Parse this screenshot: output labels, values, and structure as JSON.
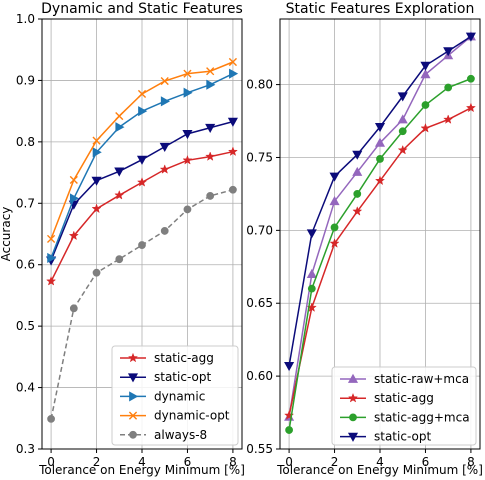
{
  "chart_data": [
    {
      "type": "line",
      "title": "Dynamic and Static Features",
      "xlabel": "Tolerance on Energy Minimum [%]",
      "ylabel": "Accuracy",
      "xlim": [
        -0.4,
        8.4
      ],
      "ylim": [
        0.3,
        1.0
      ],
      "xticks": [
        0,
        2,
        4,
        6,
        8
      ],
      "yticks": [
        0.3,
        0.4,
        0.5,
        0.6,
        0.7,
        0.8,
        0.9,
        1.0
      ],
      "ytick_labels": [
        "0.3",
        "0.4",
        "0.5",
        "0.6",
        "0.7",
        "0.8",
        "0.9",
        "1.0"
      ],
      "grid": true,
      "legend_position": "lower-right",
      "x": [
        0,
        1,
        2,
        3,
        4,
        5,
        6,
        7,
        8
      ],
      "series": [
        {
          "name": "static-agg",
          "color": "#d62728",
          "marker": "star",
          "dash": "",
          "values": [
            0.573,
            0.647,
            0.691,
            0.713,
            0.734,
            0.755,
            0.77,
            0.776,
            0.784
          ]
        },
        {
          "name": "static-opt",
          "color": "#0b0b7a",
          "marker": "tri-down",
          "dash": "",
          "values": [
            0.607,
            0.698,
            0.737,
            0.752,
            0.771,
            0.792,
            0.813,
            0.823,
            0.833
          ]
        },
        {
          "name": "dynamic",
          "color": "#1f77b4",
          "marker": "tri-right",
          "dash": "",
          "values": [
            0.611,
            0.708,
            0.783,
            0.824,
            0.85,
            0.866,
            0.88,
            0.893,
            0.911
          ]
        },
        {
          "name": "dynamic-opt",
          "color": "#ff7f0e",
          "marker": "x",
          "dash": "",
          "values": [
            0.642,
            0.738,
            0.802,
            0.842,
            0.878,
            0.899,
            0.911,
            0.915,
            0.93
          ]
        },
        {
          "name": "always-8",
          "color": "#7f7f7f",
          "marker": "circle",
          "dash": "5,3",
          "values": [
            0.349,
            0.529,
            0.587,
            0.609,
            0.632,
            0.655,
            0.69,
            0.712,
            0.722
          ]
        }
      ]
    },
    {
      "type": "line",
      "title": "Static Features Exploration",
      "xlabel": "Tolerance on Energy Minimum [%]",
      "ylabel": "",
      "xlim": [
        -0.4,
        8.4
      ],
      "ylim": [
        0.55,
        0.845
      ],
      "xticks": [
        0,
        2,
        4,
        6,
        8
      ],
      "yticks": [
        0.55,
        0.6,
        0.65,
        0.7,
        0.75,
        0.8
      ],
      "ytick_labels": [
        "0.55",
        "0.60",
        "0.65",
        "0.70",
        "0.75",
        "0.80"
      ],
      "grid": true,
      "legend_position": "lower-right",
      "x": [
        0,
        1,
        2,
        3,
        4,
        5,
        6,
        7,
        8
      ],
      "series": [
        {
          "name": "static-raw+mca",
          "color": "#9467bd",
          "marker": "tri-up",
          "dash": "",
          "values": [
            0.572,
            0.67,
            0.72,
            0.74,
            0.76,
            0.776,
            0.807,
            0.82,
            0.833
          ]
        },
        {
          "name": "static-agg",
          "color": "#d62728",
          "marker": "star",
          "dash": "",
          "values": [
            0.573,
            0.647,
            0.691,
            0.713,
            0.734,
            0.755,
            0.77,
            0.776,
            0.784
          ]
        },
        {
          "name": "static-agg+mca",
          "color": "#2ca02c",
          "marker": "circle",
          "dash": "",
          "values": [
            0.563,
            0.66,
            0.702,
            0.725,
            0.749,
            0.768,
            0.786,
            0.798,
            0.804
          ]
        },
        {
          "name": "static-opt",
          "color": "#0b0b7a",
          "marker": "tri-down",
          "dash": "",
          "values": [
            0.607,
            0.698,
            0.737,
            0.752,
            0.771,
            0.792,
            0.813,
            0.823,
            0.833
          ]
        }
      ]
    }
  ]
}
